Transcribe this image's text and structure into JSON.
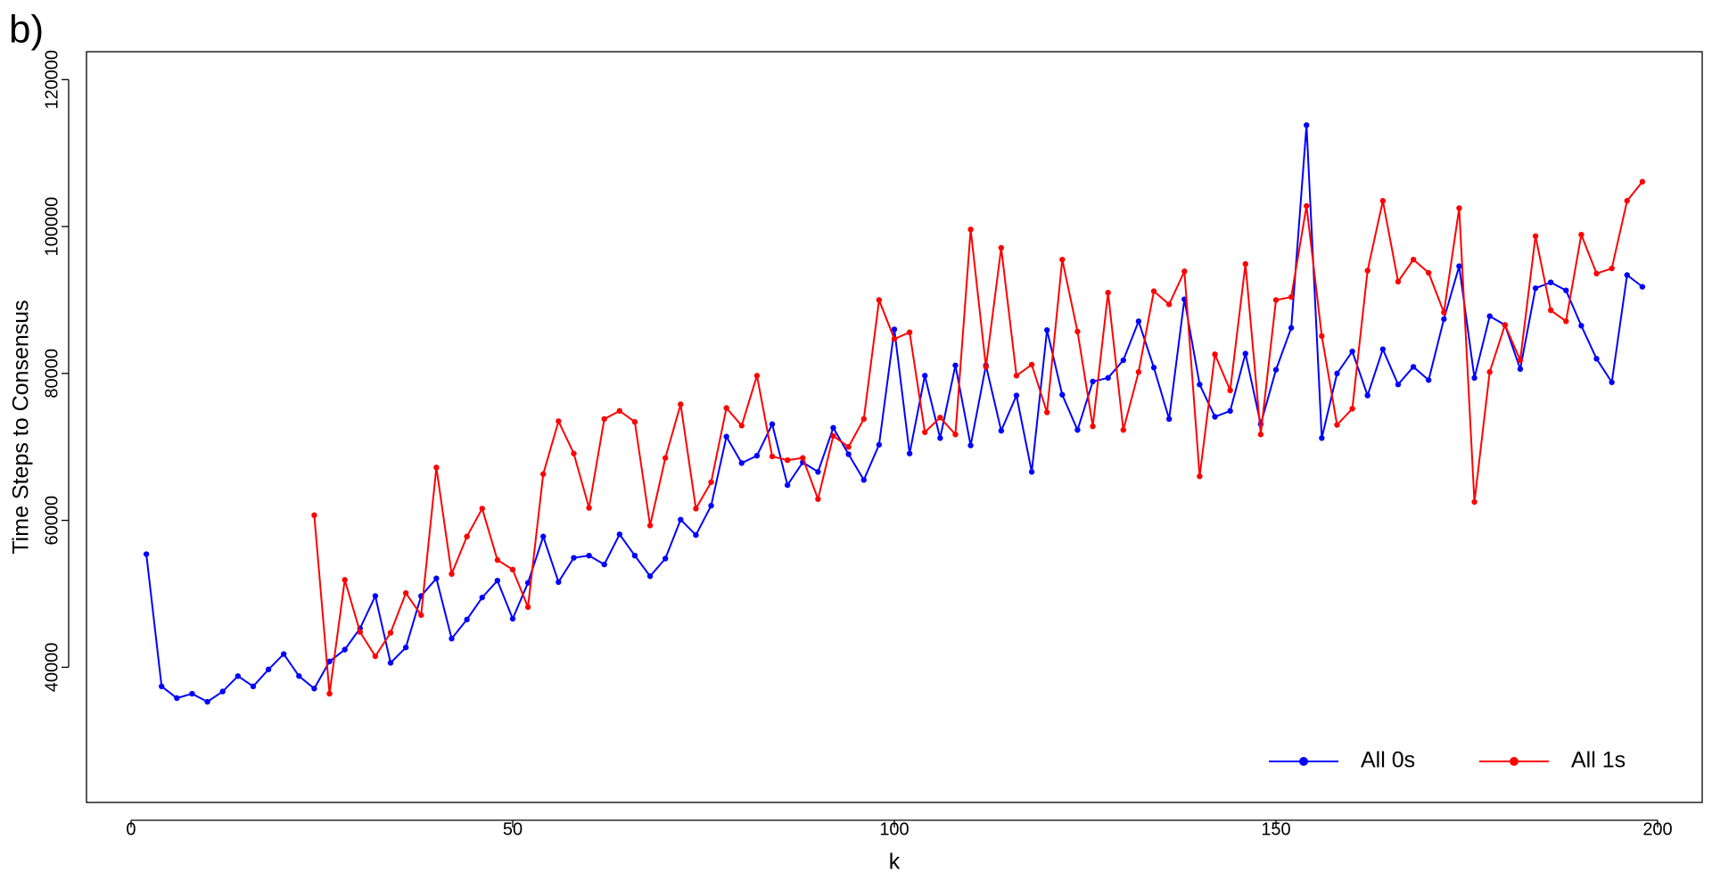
{
  "chart_data": {
    "type": "line",
    "panel_label": "b)",
    "xlabel": "k",
    "ylabel": "Time Steps to Consensus",
    "x": [
      2,
      4,
      6,
      8,
      10,
      12,
      14,
      16,
      18,
      20,
      22,
      24,
      26,
      28,
      30,
      32,
      34,
      36,
      38,
      40,
      42,
      44,
      46,
      48,
      50,
      52,
      54,
      56,
      58,
      60,
      62,
      64,
      66,
      68,
      70,
      72,
      74,
      76,
      78,
      80,
      82,
      84,
      86,
      88,
      90,
      92,
      94,
      96,
      98,
      100,
      102,
      104,
      106,
      108,
      110,
      112,
      114,
      116,
      118,
      120,
      122,
      124,
      126,
      128,
      130,
      132,
      134,
      136,
      138,
      140,
      142,
      144,
      146,
      148,
      150,
      152,
      154,
      156,
      158,
      160,
      162,
      164,
      166,
      168,
      170,
      172,
      174,
      176,
      178,
      180,
      182,
      184,
      186,
      188,
      190,
      192,
      194,
      196,
      198
    ],
    "series": [
      {
        "name": "All 0s",
        "color": "#0000ff",
        "values": [
          55400,
          37400,
          35800,
          36400,
          35300,
          36700,
          38800,
          37400,
          39700,
          41800,
          38800,
          37100,
          40800,
          42400,
          45300,
          49700,
          40600,
          42700,
          49700,
          52100,
          43900,
          46500,
          49500,
          51800,
          46600,
          51500,
          57800,
          51600,
          54900,
          55200,
          54000,
          58100,
          55200,
          52400,
          54800,
          60100,
          58000,
          62000,
          71400,
          67800,
          68800,
          73100,
          64800,
          67900,
          66600,
          72600,
          69000,
          65500,
          70300,
          86000,
          69100,
          79700,
          71200,
          81100,
          70200,
          81100,
          72200,
          77000,
          66600,
          85900,
          77100,
          72300,
          78900,
          79400,
          81800,
          87100,
          80800,
          73800,
          90100,
          78500,
          74100,
          74900,
          82700,
          73100,
          80500,
          86200,
          113800,
          71200,
          80000,
          83000,
          77000,
          83300,
          78500,
          80900,
          79100,
          87400,
          94600,
          79400,
          87800,
          86600,
          80600,
          91600,
          92400,
          91300,
          86500,
          82000,
          78800,
          93400,
          91800
        ]
      },
      {
        "name": "All 1s",
        "color": "#ff0000",
        "values": [
          null,
          null,
          null,
          null,
          null,
          null,
          null,
          null,
          null,
          null,
          null,
          60700,
          36400,
          51900,
          44800,
          41500,
          44700,
          50100,
          47100,
          67200,
          52700,
          57800,
          61600,
          54600,
          53300,
          48200,
          66300,
          73500,
          69100,
          61700,
          73800,
          74900,
          73400,
          59300,
          68500,
          75800,
          61600,
          65200,
          75300,
          72900,
          79700,
          68700,
          68200,
          68500,
          62900,
          71500,
          70000,
          73800,
          90000,
          84700,
          85600,
          72000,
          74000,
          71700,
          99600,
          80900,
          97100,
          79700,
          81200,
          74700,
          95500,
          85700,
          72800,
          91000,
          72300,
          80200,
          91200,
          89400,
          93900,
          66000,
          82600,
          77700,
          94900,
          71700,
          90000,
          90400,
          102800,
          85100,
          73000,
          75200,
          94000,
          103500,
          92500,
          95500,
          93700,
          88300,
          102500,
          62500,
          80200,
          86600,
          81800,
          98700,
          88600,
          87100,
          98900,
          93600,
          94300,
          103500,
          106100
        ]
      }
    ],
    "xlim": [
      -5.84,
      205.84
    ],
    "ylim": [
      21600,
      123800
    ],
    "xticks": [
      0,
      50,
      100,
      150,
      200
    ],
    "yticks": [
      40000,
      60000,
      80000,
      100000,
      120000
    ],
    "legend": "bottom-right"
  }
}
